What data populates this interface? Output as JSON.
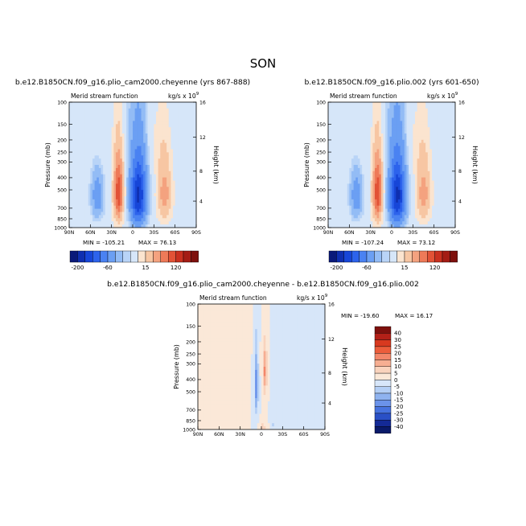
{
  "figure_title": "SON",
  "chart_data": [
    {
      "type": "contour",
      "title": "b.e12.B1850CN.f09_g16.plio_cam2000.cheyenne (yrs 867-888)",
      "subtitle_left": "Merid stream function",
      "units": "kg/s x 10",
      "units_exp": "9",
      "xlabel": "",
      "ylabel": "Pressure (mb)",
      "ylabel_right": "Height (km)",
      "x_ticks": [
        "90N",
        "60N",
        "30N",
        "0",
        "30S",
        "60S",
        "90S"
      ],
      "y_ticks": [
        100,
        150,
        200,
        250,
        300,
        400,
        500,
        700,
        850,
        1000
      ],
      "y_right_ticks": [
        16,
        12,
        8,
        4
      ],
      "ylim": [
        100,
        1000
      ],
      "min_label": "MIN = -105.21",
      "max_label": "MAX = 76.13",
      "min": -105.21,
      "max": 76.13,
      "colorbar": {
        "orientation": "horizontal",
        "tick_labels": [
          "-200",
          "-60",
          "15",
          "120"
        ]
      }
    },
    {
      "type": "contour",
      "title": "b.e12.B1850CN.f09_g16.plio.002 (yrs 601-650)",
      "subtitle_left": "Merid stream function",
      "units": "kg/s x 10",
      "units_exp": "9",
      "xlabel": "",
      "ylabel": "Pressure (mb)",
      "ylabel_right": "Height (km)",
      "x_ticks": [
        "90N",
        "60N",
        "30N",
        "0",
        "30S",
        "60S",
        "90S"
      ],
      "y_ticks": [
        100,
        150,
        200,
        250,
        300,
        400,
        500,
        700,
        850,
        1000
      ],
      "y_right_ticks": [
        16,
        12,
        8,
        4
      ],
      "ylim": [
        100,
        1000
      ],
      "min_label": "MIN = -107.24",
      "max_label": "MAX = 73.12",
      "min": -107.24,
      "max": 73.12,
      "colorbar": {
        "orientation": "horizontal",
        "tick_labels": [
          "-200",
          "-60",
          "15",
          "120"
        ]
      }
    },
    {
      "type": "contour",
      "title": "b.e12.B1850CN.f09_g16.plio_cam2000.cheyenne - b.e12.B1850CN.f09_g16.plio.002",
      "subtitle_left": "Merid stream function",
      "units": "kg/s x 10",
      "units_exp": "9",
      "xlabel": "",
      "ylabel": "Pressure (mb)",
      "ylabel_right": "Height (km)",
      "x_ticks": [
        "90N",
        "60N",
        "30N",
        "0",
        "30S",
        "60S",
        "90S"
      ],
      "y_ticks": [
        100,
        150,
        200,
        250,
        300,
        400,
        500,
        700,
        850,
        1000
      ],
      "y_right_ticks": [
        16,
        12,
        8,
        4
      ],
      "ylim": [
        100,
        1000
      ],
      "min_label": "MIN = -19.60",
      "max_label": "MAX = 16.17",
      "min": -19.6,
      "max": 16.17,
      "colorbar": {
        "orientation": "vertical",
        "levels": [
          "40",
          "30",
          "25",
          "20",
          "15",
          "10",
          "5",
          "0",
          "-5",
          "-10",
          "-15",
          "-20",
          "-25",
          "-30",
          "-40"
        ]
      }
    }
  ],
  "palette": {
    "abs": [
      "#0a1a7a",
      "#0f2fb0",
      "#1746d8",
      "#2d63ec",
      "#4a82f2",
      "#6b9ff3",
      "#93bcf5",
      "#b9d4f7",
      "#d6e6f9",
      "#fbe4cf",
      "#f7c6a3",
      "#f4a27f",
      "#ee7a58",
      "#e25236",
      "#c9301f",
      "#a41c14",
      "#7e100d"
    ],
    "diff": [
      "#7e100d",
      "#b32018",
      "#d8391f",
      "#ec5d3b",
      "#f3876a",
      "#f6ae92",
      "#f9d3bd",
      "#fbe8d8",
      "#d7e6f9",
      "#b4cff5",
      "#8fb3ef",
      "#6b93ea",
      "#4773df",
      "#2a50c6",
      "#142a96",
      "#0a1a6a"
    ]
  }
}
